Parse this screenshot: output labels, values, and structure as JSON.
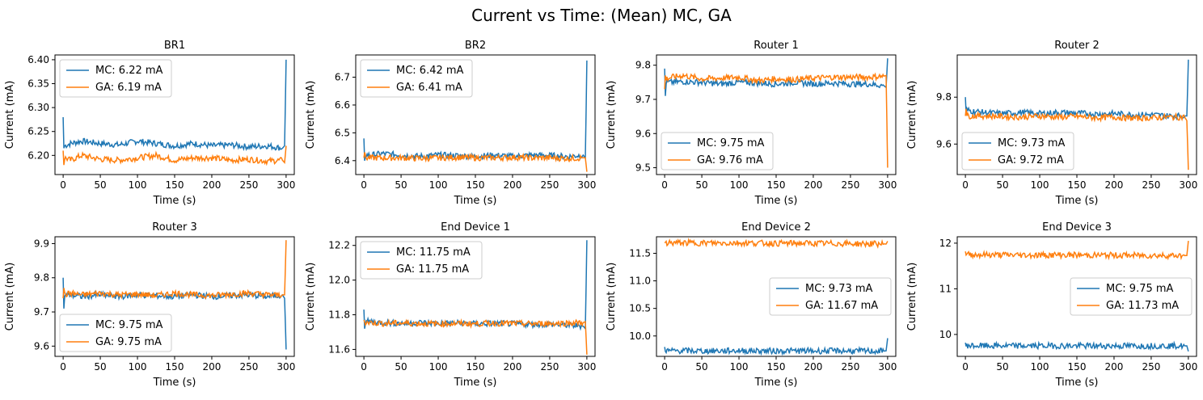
{
  "figure": {
    "title": "Current vs Time: (Mean) MC, GA"
  },
  "colors": {
    "mc": "#1f77b4",
    "ga": "#ff7f0e"
  },
  "chart_data": [
    {
      "type": "line",
      "title": "BR1",
      "xlabel": "Time (s)",
      "ylabel": "Current (mA)",
      "xlim": [
        -11,
        311
      ],
      "ylim": [
        6.16,
        6.41
      ],
      "xticks": [
        0,
        50,
        100,
        150,
        200,
        250,
        300
      ],
      "yticks": [
        6.2,
        6.25,
        6.3,
        6.35,
        6.4
      ],
      "ytick_labels": [
        "6.20",
        "6.25",
        "6.30",
        "6.35",
        "6.40"
      ],
      "legend": "upper left",
      "series": [
        {
          "name": "MC: 6.22 mA",
          "color": "#1f77b4",
          "x": [
            0,
            1,
            2,
            10,
            25,
            50,
            75,
            100,
            125,
            150,
            175,
            200,
            225,
            250,
            275,
            295,
            298,
            300
          ],
          "y": [
            6.28,
            6.215,
            6.22,
            6.225,
            6.23,
            6.225,
            6.222,
            6.23,
            6.225,
            6.22,
            6.225,
            6.22,
            6.222,
            6.218,
            6.22,
            6.215,
            6.22,
            6.4
          ]
        },
        {
          "name": "GA: 6.19 mA",
          "color": "#ff7f0e",
          "x": [
            0,
            1,
            2,
            10,
            25,
            50,
            75,
            100,
            125,
            150,
            175,
            200,
            225,
            250,
            275,
            295,
            298,
            300
          ],
          "y": [
            6.21,
            6.18,
            6.195,
            6.19,
            6.2,
            6.192,
            6.19,
            6.195,
            6.2,
            6.19,
            6.195,
            6.195,
            6.19,
            6.192,
            6.188,
            6.19,
            6.185,
            6.22
          ]
        }
      ]
    },
    {
      "type": "line",
      "title": "BR2",
      "xlabel": "Time (s)",
      "ylabel": "Current (mA)",
      "xlim": [
        -11,
        311
      ],
      "ylim": [
        6.35,
        6.78
      ],
      "xticks": [
        0,
        50,
        100,
        150,
        200,
        250,
        300
      ],
      "yticks": [
        6.4,
        6.5,
        6.6,
        6.7
      ],
      "ytick_labels": [
        "6.4",
        "6.5",
        "6.6",
        "6.7"
      ],
      "legend": "upper left",
      "series": [
        {
          "name": "MC: 6.42 mA",
          "color": "#1f77b4",
          "x": [
            0,
            1,
            2,
            10,
            25,
            50,
            75,
            100,
            125,
            150,
            175,
            200,
            225,
            250,
            275,
            295,
            298,
            300
          ],
          "y": [
            6.48,
            6.4,
            6.42,
            6.42,
            6.425,
            6.42,
            6.415,
            6.42,
            6.418,
            6.415,
            6.42,
            6.415,
            6.42,
            6.418,
            6.415,
            6.42,
            6.41,
            6.76
          ]
        },
        {
          "name": "GA: 6.41 mA",
          "color": "#ff7f0e",
          "x": [
            0,
            1,
            2,
            10,
            25,
            50,
            75,
            100,
            125,
            150,
            175,
            200,
            225,
            250,
            275,
            295,
            298,
            300
          ],
          "y": [
            6.41,
            6.43,
            6.41,
            6.41,
            6.41,
            6.41,
            6.408,
            6.41,
            6.412,
            6.41,
            6.41,
            6.412,
            6.41,
            6.41,
            6.408,
            6.41,
            6.41,
            6.36
          ]
        }
      ]
    },
    {
      "type": "line",
      "title": "Router 1",
      "xlabel": "Time (s)",
      "ylabel": "Current (mA)",
      "xlim": [
        -11,
        311
      ],
      "ylim": [
        9.48,
        9.83
      ],
      "xticks": [
        0,
        50,
        100,
        150,
        200,
        250,
        300
      ],
      "yticks": [
        9.5,
        9.6,
        9.7,
        9.8
      ],
      "ytick_labels": [
        "9.5",
        "9.6",
        "9.7",
        "9.8"
      ],
      "legend": "lower left",
      "series": [
        {
          "name": "MC: 9.75 mA",
          "color": "#1f77b4",
          "x": [
            0,
            1,
            2,
            10,
            25,
            50,
            75,
            100,
            125,
            150,
            175,
            200,
            225,
            250,
            275,
            295,
            298,
            300
          ],
          "y": [
            9.79,
            9.71,
            9.75,
            9.75,
            9.752,
            9.75,
            9.745,
            9.75,
            9.748,
            9.745,
            9.75,
            9.745,
            9.748,
            9.745,
            9.745,
            9.74,
            9.735,
            9.82
          ]
        },
        {
          "name": "GA: 9.76 mA",
          "color": "#ff7f0e",
          "x": [
            0,
            1,
            2,
            10,
            25,
            50,
            75,
            100,
            125,
            150,
            175,
            200,
            225,
            250,
            275,
            295,
            298,
            300
          ],
          "y": [
            9.73,
            9.77,
            9.76,
            9.765,
            9.77,
            9.76,
            9.762,
            9.765,
            9.755,
            9.76,
            9.758,
            9.762,
            9.765,
            9.765,
            9.765,
            9.768,
            9.77,
            9.5
          ]
        }
      ]
    },
    {
      "type": "line",
      "title": "Router 2",
      "xlabel": "Time (s)",
      "ylabel": "Current (mA)",
      "xlim": [
        -11,
        311
      ],
      "ylim": [
        9.47,
        9.98
      ],
      "xticks": [
        0,
        50,
        100,
        150,
        200,
        250,
        300
      ],
      "yticks": [
        9.6,
        9.8
      ],
      "ytick_labels": [
        "9.6",
        "9.8"
      ],
      "legend": "lower left",
      "series": [
        {
          "name": "MC: 9.73 mA",
          "color": "#1f77b4",
          "x": [
            0,
            1,
            2,
            10,
            25,
            50,
            75,
            100,
            125,
            150,
            175,
            200,
            225,
            250,
            275,
            295,
            298,
            300
          ],
          "y": [
            9.8,
            9.73,
            9.745,
            9.74,
            9.735,
            9.73,
            9.735,
            9.73,
            9.735,
            9.732,
            9.728,
            9.73,
            9.725,
            9.725,
            9.72,
            9.72,
            9.72,
            9.96
          ]
        },
        {
          "name": "GA: 9.72 mA",
          "color": "#ff7f0e",
          "x": [
            0,
            1,
            2,
            10,
            25,
            50,
            75,
            100,
            125,
            150,
            175,
            200,
            225,
            250,
            275,
            295,
            298,
            300
          ],
          "y": [
            9.72,
            9.75,
            9.72,
            9.72,
            9.72,
            9.718,
            9.715,
            9.72,
            9.715,
            9.718,
            9.712,
            9.715,
            9.71,
            9.712,
            9.715,
            9.715,
            9.7,
            9.49
          ]
        }
      ]
    },
    {
      "type": "line",
      "title": "Router 3",
      "xlabel": "Time (s)",
      "ylabel": "Current (mA)",
      "xlim": [
        -11,
        311
      ],
      "ylim": [
        9.57,
        9.92
      ],
      "xticks": [
        0,
        50,
        100,
        150,
        200,
        250,
        300
      ],
      "yticks": [
        9.6,
        9.7,
        9.8,
        9.9
      ],
      "ytick_labels": [
        "9.6",
        "9.7",
        "9.8",
        "9.9"
      ],
      "legend": "lower left",
      "series": [
        {
          "name": "MC: 9.75 mA",
          "color": "#1f77b4",
          "x": [
            0,
            1,
            2,
            10,
            25,
            50,
            75,
            100,
            125,
            150,
            175,
            200,
            225,
            250,
            275,
            295,
            298,
            300
          ],
          "y": [
            9.8,
            9.71,
            9.75,
            9.75,
            9.745,
            9.75,
            9.745,
            9.75,
            9.748,
            9.745,
            9.75,
            9.745,
            9.748,
            9.75,
            9.745,
            9.75,
            9.74,
            9.59
          ]
        },
        {
          "name": "GA: 9.75 mA",
          "color": "#ff7f0e",
          "x": [
            0,
            1,
            2,
            10,
            25,
            50,
            75,
            100,
            125,
            150,
            175,
            200,
            225,
            250,
            275,
            295,
            298,
            300
          ],
          "y": [
            9.74,
            9.77,
            9.75,
            9.755,
            9.75,
            9.755,
            9.75,
            9.752,
            9.748,
            9.755,
            9.75,
            9.748,
            9.752,
            9.755,
            9.75,
            9.75,
            9.75,
            9.91
          ]
        }
      ]
    },
    {
      "type": "line",
      "title": "End Device 1",
      "xlabel": "Time (s)",
      "ylabel": "Current (mA)",
      "xlim": [
        -11,
        311
      ],
      "ylim": [
        11.56,
        12.25
      ],
      "xticks": [
        0,
        50,
        100,
        150,
        200,
        250,
        300
      ],
      "yticks": [
        11.6,
        11.8,
        12.0,
        12.2
      ],
      "ytick_labels": [
        "11.6",
        "11.8",
        "12.0",
        "12.2"
      ],
      "legend": "upper left",
      "series": [
        {
          "name": "MC: 11.75 mA",
          "color": "#1f77b4",
          "x": [
            0,
            1,
            2,
            10,
            25,
            50,
            75,
            100,
            125,
            150,
            175,
            200,
            225,
            250,
            275,
            295,
            298,
            300
          ],
          "y": [
            11.83,
            11.72,
            11.76,
            11.76,
            11.755,
            11.75,
            11.755,
            11.75,
            11.752,
            11.748,
            11.75,
            11.748,
            11.745,
            11.745,
            11.74,
            11.735,
            11.72,
            12.23
          ]
        },
        {
          "name": "GA: 11.75 mA",
          "color": "#ff7f0e",
          "x": [
            0,
            1,
            2,
            10,
            25,
            50,
            75,
            100,
            125,
            150,
            175,
            200,
            225,
            250,
            275,
            295,
            298,
            300
          ],
          "y": [
            11.77,
            11.76,
            11.755,
            11.755,
            11.75,
            11.752,
            11.75,
            11.748,
            11.75,
            11.748,
            11.752,
            11.75,
            11.748,
            11.75,
            11.752,
            11.755,
            11.76,
            11.57
          ]
        }
      ]
    },
    {
      "type": "line",
      "title": "End Device 2",
      "xlabel": "Time (s)",
      "ylabel": "Current (mA)",
      "xlim": [
        -11,
        311
      ],
      "ylim": [
        9.63,
        11.8
      ],
      "xticks": [
        0,
        50,
        100,
        150,
        200,
        250,
        300
      ],
      "yticks": [
        10.0,
        10.5,
        11.0,
        11.5
      ],
      "ytick_labels": [
        "10.0",
        "10.5",
        "11.0",
        "11.5"
      ],
      "legend": "center right",
      "series": [
        {
          "name": "MC: 9.73 mA",
          "color": "#1f77b4",
          "x": [
            0,
            1,
            2,
            10,
            25,
            50,
            75,
            100,
            125,
            150,
            175,
            200,
            225,
            250,
            275,
            295,
            298,
            300
          ],
          "y": [
            9.8,
            9.72,
            9.73,
            9.73,
            9.732,
            9.728,
            9.73,
            9.735,
            9.73,
            9.728,
            9.73,
            9.728,
            9.73,
            9.728,
            9.725,
            9.725,
            9.73,
            9.96
          ]
        },
        {
          "name": "GA: 11.67 mA",
          "color": "#ff7f0e",
          "x": [
            0,
            1,
            2,
            10,
            25,
            50,
            75,
            100,
            125,
            150,
            175,
            200,
            225,
            250,
            275,
            295,
            298,
            300
          ],
          "y": [
            11.69,
            11.7,
            11.69,
            11.69,
            11.69,
            11.688,
            11.685,
            11.69,
            11.685,
            11.68,
            11.683,
            11.68,
            11.678,
            11.675,
            11.672,
            11.67,
            11.668,
            11.72
          ]
        }
      ]
    },
    {
      "type": "line",
      "title": "End Device 3",
      "xlabel": "Time (s)",
      "ylabel": "Current (mA)",
      "xlim": [
        -11,
        311
      ],
      "ylim": [
        9.52,
        12.14
      ],
      "xticks": [
        0,
        50,
        100,
        150,
        200,
        250,
        300
      ],
      "yticks": [
        10,
        11,
        12
      ],
      "ytick_labels": [
        "10",
        "11",
        "12"
      ],
      "legend": "center right",
      "series": [
        {
          "name": "MC: 9.75 mA",
          "color": "#1f77b4",
          "x": [
            0,
            1,
            2,
            10,
            25,
            50,
            75,
            100,
            125,
            150,
            175,
            200,
            225,
            250,
            275,
            295,
            298,
            300
          ],
          "y": [
            9.82,
            9.74,
            9.76,
            9.75,
            9.752,
            9.75,
            9.748,
            9.75,
            9.752,
            9.75,
            9.748,
            9.75,
            9.748,
            9.75,
            9.752,
            9.75,
            9.75,
            9.63
          ]
        },
        {
          "name": "GA: 11.73 mA",
          "color": "#ff7f0e",
          "x": [
            0,
            1,
            2,
            10,
            25,
            50,
            75,
            100,
            125,
            150,
            175,
            200,
            225,
            250,
            275,
            295,
            298,
            300
          ],
          "y": [
            11.82,
            11.74,
            11.75,
            11.75,
            11.745,
            11.742,
            11.74,
            11.738,
            11.742,
            11.738,
            11.735,
            11.735,
            11.732,
            11.73,
            11.73,
            11.728,
            11.73,
            12.05
          ]
        }
      ]
    }
  ]
}
